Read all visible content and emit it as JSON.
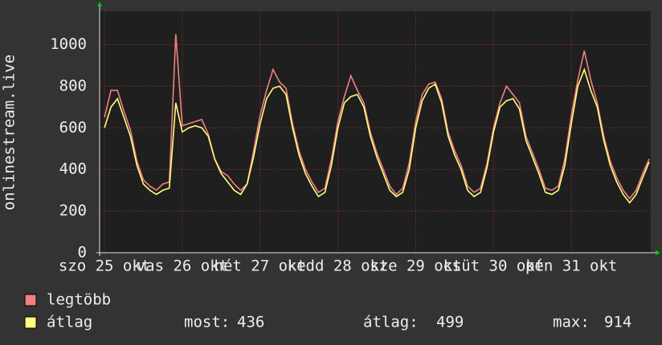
{
  "chart_data": {
    "type": "line",
    "ylabel": "onlinestream.live",
    "x": [
      0,
      2,
      4,
      6,
      8,
      10,
      12,
      14,
      16,
      18,
      20,
      22,
      24,
      26,
      28,
      30,
      32,
      34,
      36,
      38,
      40,
      42,
      44,
      46,
      48,
      50,
      52,
      54,
      56,
      58,
      60,
      62,
      64,
      66,
      68,
      70,
      72,
      74,
      76,
      78,
      80,
      82,
      84,
      86,
      88,
      90,
      92,
      94,
      96,
      98,
      100,
      102,
      104,
      106,
      108,
      110,
      112,
      114,
      116,
      118,
      120,
      122,
      124,
      126,
      128,
      130,
      132,
      134,
      136,
      138,
      140,
      142,
      144,
      146,
      148,
      150,
      152,
      154,
      156,
      158,
      160,
      162,
      164,
      166,
      168
    ],
    "xlim": [
      -1.5,
      168.5
    ],
    "xticks": [
      {
        "value": 0,
        "label": "szo 25 okt"
      },
      {
        "value": 24,
        "label": "vas 26 okt"
      },
      {
        "value": 48,
        "label": "hét 27 okt"
      },
      {
        "value": 72,
        "label": "kedd 28 okt"
      },
      {
        "value": 96,
        "label": "sze 29 okt"
      },
      {
        "value": 120,
        "label": "csüt 30 okt"
      },
      {
        "value": 144,
        "label": "pén 31 okt"
      }
    ],
    "ylim": [
      0,
      1160
    ],
    "yticks": [
      0,
      200,
      400,
      600,
      800,
      1000
    ],
    "grid": true,
    "series": [
      {
        "name": "legtöbb",
        "color": "#f08080",
        "values": [
          650,
          780,
          780,
          680,
          590,
          440,
          350,
          320,
          300,
          330,
          340,
          1050,
          610,
          620,
          630,
          640,
          570,
          450,
          390,
          370,
          330,
          300,
          330,
          490,
          660,
          780,
          880,
          820,
          790,
          620,
          490,
          400,
          340,
          290,
          310,
          450,
          630,
          750,
          850,
          780,
          720,
          580,
          480,
          400,
          320,
          280,
          310,
          430,
          630,
          760,
          810,
          820,
          740,
          580,
          490,
          420,
          320,
          290,
          310,
          430,
          600,
          720,
          800,
          760,
          720,
          560,
          480,
          400,
          310,
          300,
          320,
          450,
          660,
          830,
          970,
          830,
          720,
          560,
          440,
          360,
          300,
          260,
          300,
          380,
          450
        ]
      },
      {
        "name": "átlag",
        "color": "#ffff80",
        "values": [
          600,
          700,
          740,
          650,
          560,
          420,
          330,
          300,
          280,
          300,
          310,
          720,
          580,
          600,
          610,
          600,
          560,
          450,
          380,
          340,
          300,
          280,
          330,
          460,
          620,
          740,
          790,
          800,
          760,
          600,
          470,
          380,
          320,
          270,
          290,
          420,
          600,
          720,
          750,
          760,
          700,
          560,
          460,
          380,
          300,
          270,
          290,
          400,
          600,
          730,
          790,
          810,
          720,
          560,
          470,
          400,
          300,
          270,
          290,
          410,
          580,
          700,
          730,
          740,
          690,
          540,
          460,
          380,
          290,
          280,
          300,
          420,
          620,
          800,
          880,
          780,
          700,
          540,
          420,
          340,
          280,
          240,
          280,
          360,
          436
        ]
      }
    ],
    "stats": [
      {
        "label": "most:",
        "value": 436
      },
      {
        "label": "átlag:",
        "value": 499
      },
      {
        "label": "max:",
        "value": 914
      }
    ]
  }
}
